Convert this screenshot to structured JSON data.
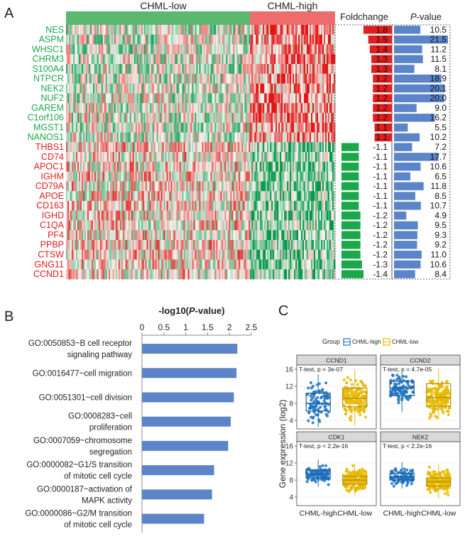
{
  "panels": {
    "a": "A",
    "b": "B",
    "c": "C"
  },
  "colors": {
    "green": "#1aa84a",
    "red": "#e11d1d",
    "blue": "#5b84c9",
    "low_bar": "#5cb86e",
    "high_bar": "#ef6c6c",
    "box_blue": "#1f73c2",
    "box_yellow": "#e8b800"
  },
  "chart_data": [
    {
      "type": "heatmap",
      "groups": [
        "CHML-low",
        "CHML-high"
      ],
      "foldchange_header": "Foldchange",
      "pvalue_header_italic": "P",
      "pvalue_header_rest": "-value",
      "genes": [
        "NES",
        "ASPM",
        "WHSC1",
        "CHRM3",
        "S100A4",
        "NTPCR",
        "NEK2",
        "NUF2",
        "GAREM",
        "C1orf106",
        "MGST1",
        "NANOS1",
        "THBS1",
        "CD74",
        "APOC1",
        "IGHM",
        "CD79A",
        "APOE",
        "CD163",
        "IGHD",
        "C1QA",
        "PF4",
        "PPBP",
        "CTSW",
        "GNG11",
        "CCND1"
      ],
      "foldchange": [
        "1.8",
        "1.5",
        "1.4",
        "1.3",
        "1.3",
        "1.2",
        "1.2",
        "1.2",
        "1.2",
        "1.2",
        "1.1",
        "1.1",
        "-1.1",
        "-1.1",
        "-1.1",
        "-1.1",
        "-1.1",
        "-1.1",
        "-1.1",
        "-1.2",
        "-1.2",
        "-1.2",
        "-1.2",
        "-1.2",
        "-1.3",
        "-1.4"
      ],
      "pvalue": [
        "10.5",
        "21.5",
        "11.2",
        "11.5",
        "8.1",
        "18.9",
        "20.1",
        "20.0",
        "9.0",
        "16.2",
        "5.5",
        "10.2",
        "7.2",
        "17.7",
        "10.6",
        "6.5",
        "11.8",
        "8.5",
        "10.7",
        "4.9",
        "9.5",
        "9.3",
        "9.2",
        "11.0",
        "10.6",
        "8.4"
      ]
    },
    {
      "type": "bar",
      "title_prefix": "-log10(",
      "title_italic": "P",
      "title_suffix": "-value)",
      "ticks": [
        "0",
        "0.5",
        "1",
        "1.5",
        "2",
        "2.5"
      ],
      "xlim": [
        0,
        2.5
      ],
      "categories": [
        [
          "GO:0050853~B cell receptor",
          "signaling pathway"
        ],
        [
          "GO:0016477~cell migration"
        ],
        [
          "GO:0051301~cell division"
        ],
        [
          "GO:0008283~cell",
          "proliferation"
        ],
        [
          "GO:0007059~chromosome",
          "segregation"
        ],
        [
          "GO:0000082~G1/S transition",
          "of mitotic cell cycle"
        ],
        [
          "GO:0000187~activation of",
          "MAPK activity"
        ],
        [
          "GO:0000086~G2/M transition",
          "of mitotic cell cycle"
        ]
      ],
      "values": [
        2.18,
        2.16,
        2.1,
        2.03,
        1.97,
        1.65,
        1.6,
        1.42
      ]
    },
    {
      "type": "box",
      "legend_title": "Group",
      "legend": [
        "CHML-high",
        "CHML-low"
      ],
      "ylabel": "Gene expression (log2)",
      "yticks": [
        "16",
        "12",
        "8",
        "4"
      ],
      "ylim": [
        2,
        17
      ],
      "xcategories": [
        "CHML-high",
        "CHML-low"
      ],
      "facets": [
        {
          "name": "CCND1",
          "test": "T-test, p = 3e-07",
          "high": {
            "q1": 6.2,
            "med": 8.0,
            "q3": 10.4,
            "lo": 2.5,
            "hi": 14.8
          },
          "low": {
            "q1": 7.2,
            "med": 9.2,
            "q3": 11.6,
            "lo": 2.8,
            "hi": 16.0
          }
        },
        {
          "name": "CCND2",
          "test": "T-test, p = 4.7e-05",
          "high": {
            "q1": 9.8,
            "med": 11.6,
            "q3": 13.2,
            "lo": 6.0,
            "hi": 16.0
          },
          "low": {
            "q1": 7.4,
            "med": 9.4,
            "q3": 12.6,
            "lo": 4.2,
            "hi": 16.2
          }
        },
        {
          "name": "CDK1",
          "test": "T-test, p < 2.2e-16",
          "high": {
            "q1": 8.5,
            "med": 9.4,
            "q3": 10.4,
            "lo": 6.4,
            "hi": 12.8
          },
          "low": {
            "q1": 7.0,
            "med": 8.0,
            "q3": 8.9,
            "lo": 4.4,
            "hi": 11.8
          }
        },
        {
          "name": "NEK2",
          "test": "T-test, p < 2.2e-16",
          "high": {
            "q1": 8.0,
            "med": 8.8,
            "q3": 9.6,
            "lo": 6.0,
            "hi": 12.2
          },
          "low": {
            "q1": 6.6,
            "med": 7.6,
            "q3": 8.5,
            "lo": 3.8,
            "hi": 11.6
          }
        }
      ]
    }
  ]
}
